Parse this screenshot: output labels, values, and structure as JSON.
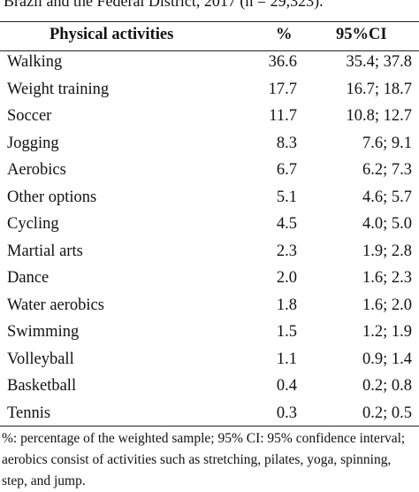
{
  "caption": "Brazil and the Federal District, 2017 (n = 29,323).",
  "table": {
    "header": [
      "Physical activities",
      "%",
      "95%CI"
    ],
    "rows": [
      [
        "Walking",
        "36.6",
        "35.4; 37.8"
      ],
      [
        "Weight training",
        "17.7",
        "16.7; 18.7"
      ],
      [
        "Soccer",
        "11.7",
        "10.8; 12.7"
      ],
      [
        "Jogging",
        "8.3",
        "7.6; 9.1"
      ],
      [
        "Aerobics",
        "6.7",
        "6.2; 7.3"
      ],
      [
        "Other options",
        "5.1",
        "4.6; 5.7"
      ],
      [
        "Cycling",
        "4.5",
        "4.0; 5.0"
      ],
      [
        "Martial arts",
        "2.3",
        "1.9; 2.8"
      ],
      [
        "Dance",
        "2.0",
        "1.6; 2.3"
      ],
      [
        "Water aerobics",
        "1.8",
        "1.6; 2.0"
      ],
      [
        "Swimming",
        "1.5",
        "1.2; 1.9"
      ],
      [
        "Volleyball",
        "1.1",
        "0.9; 1.4"
      ],
      [
        "Basketball",
        "0.4",
        "0.2; 0.8"
      ],
      [
        "Tennis",
        "0.3",
        "0.2; 0.5"
      ]
    ]
  },
  "footnote": "%: percentage of the weighted sample; 95% CI: 95% confidence interval; aerobics consist of activities such as stretching, pilates, yoga, spinning, step, and jump."
}
